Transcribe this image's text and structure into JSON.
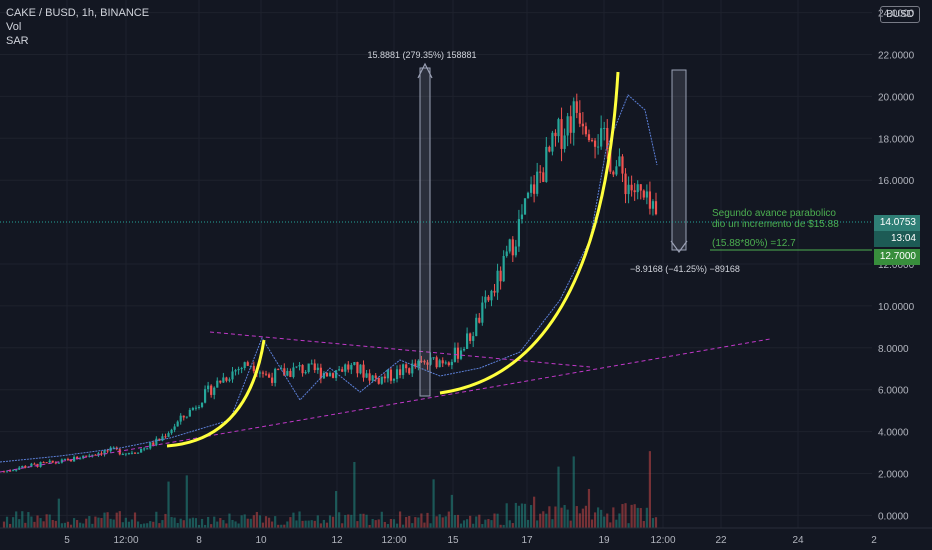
{
  "legend": {
    "symbol": "CAKE / BUSD, 1h, BINANCE",
    "indicators": [
      "Vol",
      "SAR"
    ]
  },
  "currency_badge": "BUSD",
  "price_tags": {
    "last": "14.0753",
    "countdown": "13:04",
    "target": "12.7000"
  },
  "chart_data": {
    "type": "candlestick",
    "y_axis": {
      "ticks": [
        "24.0000",
        "22.0000",
        "20.0000",
        "18.0000",
        "16.0000",
        "12.0000",
        "10.0000",
        "8.0000",
        "6.0000",
        "4.0000",
        "2.0000",
        "0.0000"
      ],
      "range": [
        -0.6,
        24.6
      ]
    },
    "x_axis": {
      "ticks": [
        "5",
        "12:00",
        "8",
        "10",
        "12",
        "12:00",
        "15",
        "17",
        "19",
        "12:00",
        "22",
        "24",
        "2"
      ]
    },
    "annotations": {
      "first_move": "15.8881 (279.35%) 158881",
      "second_move": "−8.9168 (−41.25%) −89168",
      "note_line1": "Segundo avance parabolico",
      "note_line2": "dio un incremento de $15.88",
      "calc": "(15.88*80%) =12.7"
    },
    "series_close": [
      2.1,
      2.3,
      2.4,
      2.5,
      2.6,
      2.8,
      3.0,
      3.1,
      3.0,
      3.2,
      3.6,
      4.3,
      5.0,
      5.8,
      6.5,
      7.0,
      7.3,
      6.6,
      6.8,
      7.0,
      6.9,
      6.8,
      7.1,
      6.9,
      6.5,
      6.7,
      7.0,
      7.2,
      7.4,
      7.6,
      8.5,
      10.0,
      11.5,
      13.5,
      15.5,
      17.0,
      18.5,
      19.5,
      18.5,
      17.2,
      16.0,
      15.2,
      14.1
    ],
    "colors": {
      "up": "#26a69a",
      "down": "#ef5350",
      "parabola": "#ffff3d",
      "trendline": "#c038c8",
      "sar": "#5b7fd6",
      "measure": "#9aa0b4",
      "note": "#4caf50"
    }
  }
}
